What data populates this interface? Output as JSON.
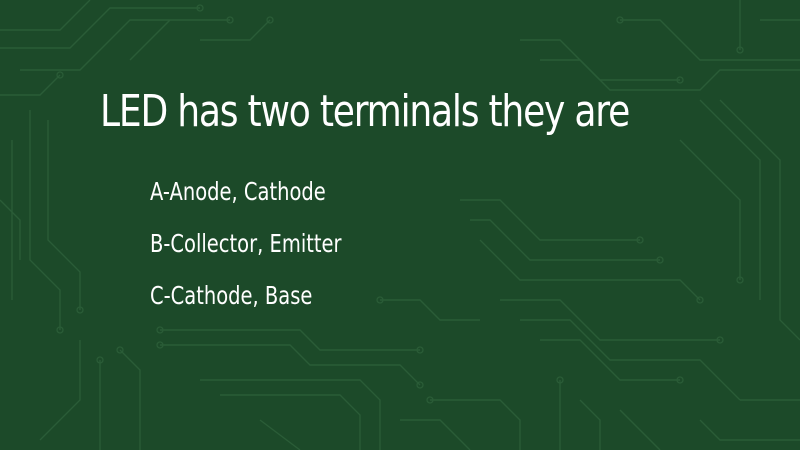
{
  "slide": {
    "title": "LED has two terminals they are",
    "options": [
      {
        "text": "A-Anode, Cathode"
      },
      {
        "text": "B-Collector, Emitter"
      },
      {
        "text": "C-Cathode, Base"
      }
    ]
  },
  "colors": {
    "background": "#1c4a29",
    "circuit_traces": "#2a5c37",
    "text": "#ffffff"
  }
}
